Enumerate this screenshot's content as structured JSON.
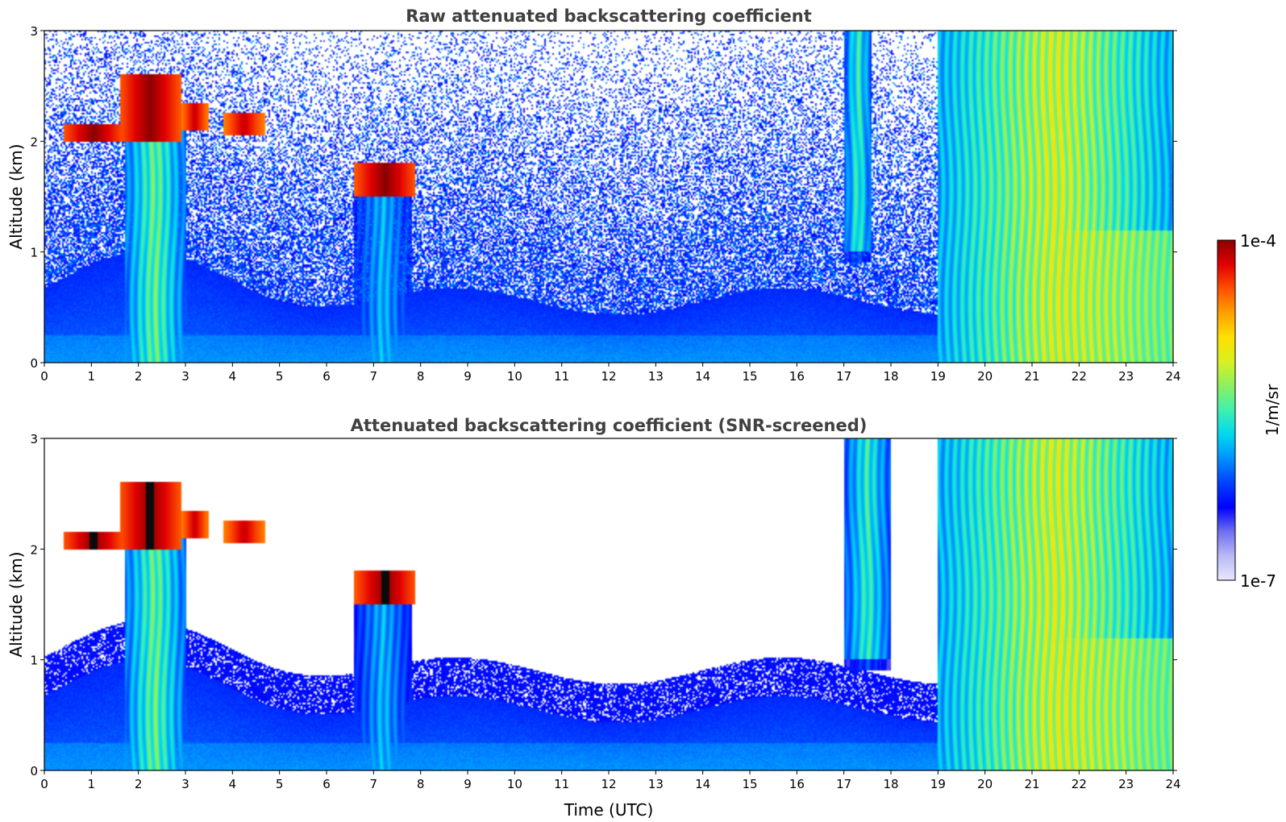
{
  "chart_data": [
    {
      "type": "heatmap",
      "title": "Raw attenuated backscattering coefficient",
      "xlabel": "",
      "ylabel": "Altitude (km)",
      "xlim": [
        0,
        24
      ],
      "ylim": [
        0,
        3
      ],
      "xticks": [
        0,
        1,
        2,
        3,
        4,
        5,
        6,
        7,
        8,
        9,
        10,
        11,
        12,
        13,
        14,
        15,
        16,
        17,
        18,
        19,
        20,
        21,
        22,
        23,
        24
      ],
      "yticks": [
        0,
        1,
        2,
        3
      ],
      "screened": false,
      "features": [
        {
          "name": "boundary-layer aerosol",
          "x": [
            0,
            24
          ],
          "y": [
            0,
            0.6
          ],
          "level": 0.28
        },
        {
          "name": "noise region",
          "x": [
            0,
            24
          ],
          "y": [
            0.6,
            3
          ],
          "level": 0.22
        },
        {
          "name": "cloud layer",
          "x": [
            0.4,
            1.7
          ],
          "y": [
            2.0,
            2.15
          ],
          "level": 1.0
        },
        {
          "name": "cloud layer",
          "x": [
            1.6,
            2.9
          ],
          "y": [
            2.0,
            2.6
          ],
          "level": 1.0
        },
        {
          "name": "cloud layer",
          "x": [
            2.9,
            3.5
          ],
          "y": [
            2.1,
            2.35
          ],
          "level": 0.95
        },
        {
          "name": "cloud layer",
          "x": [
            3.8,
            4.7
          ],
          "y": [
            2.05,
            2.25
          ],
          "level": 0.95
        },
        {
          "name": "cloud layer",
          "x": [
            6.6,
            7.9
          ],
          "y": [
            1.5,
            1.8
          ],
          "level": 1.0
        },
        {
          "name": "precipitation fall streak",
          "x": [
            1.7,
            3.0
          ],
          "y": [
            0,
            2.3
          ],
          "level": 0.6
        },
        {
          "name": "precipitation fall streak",
          "x": [
            6.6,
            7.8
          ],
          "y": [
            0,
            1.6
          ],
          "level": 0.45
        },
        {
          "name": "high cloud",
          "x": [
            17.0,
            17.6
          ],
          "y": [
            0.9,
            3.0
          ],
          "level": 0.55
        },
        {
          "name": "precipitation",
          "x": [
            19.0,
            24.0
          ],
          "y": [
            0,
            3.0
          ],
          "level": 0.72
        }
      ]
    },
    {
      "type": "heatmap",
      "title": "Attenuated backscattering coefficient (SNR-screened)",
      "xlabel": "Time (UTC)",
      "ylabel": "Altitude (km)",
      "xlim": [
        0,
        24
      ],
      "ylim": [
        0,
        3
      ],
      "xticks": [
        0,
        1,
        2,
        3,
        4,
        5,
        6,
        7,
        8,
        9,
        10,
        11,
        12,
        13,
        14,
        15,
        16,
        17,
        18,
        19,
        20,
        21,
        22,
        23,
        24
      ],
      "yticks": [
        0,
        1,
        2,
        3
      ],
      "screened": true,
      "features": [
        {
          "name": "boundary-layer aerosol",
          "x": [
            0,
            24
          ],
          "y": [
            0,
            1.0
          ],
          "level": 0.27
        },
        {
          "name": "cloud layer",
          "x": [
            0.4,
            1.7
          ],
          "y": [
            2.0,
            2.15
          ],
          "level": 1.0
        },
        {
          "name": "cloud layer",
          "x": [
            1.6,
            2.9
          ],
          "y": [
            2.0,
            2.6
          ],
          "level": 1.0
        },
        {
          "name": "cloud layer",
          "x": [
            2.9,
            3.5
          ],
          "y": [
            2.1,
            2.35
          ],
          "level": 0.95
        },
        {
          "name": "cloud layer",
          "x": [
            3.8,
            4.7
          ],
          "y": [
            2.05,
            2.25
          ],
          "level": 0.95
        },
        {
          "name": "cloud layer",
          "x": [
            6.6,
            7.9
          ],
          "y": [
            1.5,
            1.8
          ],
          "level": 1.0
        },
        {
          "name": "precipitation fall streak",
          "x": [
            1.7,
            3.0
          ],
          "y": [
            0,
            2.3
          ],
          "level": 0.6
        },
        {
          "name": "precipitation fall streak",
          "x": [
            6.6,
            7.8
          ],
          "y": [
            0,
            1.6
          ],
          "level": 0.45
        },
        {
          "name": "high cloud",
          "x": [
            17.0,
            18.0
          ],
          "y": [
            0.9,
            3.0
          ],
          "level": 0.55
        },
        {
          "name": "precipitation",
          "x": [
            19.0,
            24.0
          ],
          "y": [
            0,
            3.0
          ],
          "level": 0.72
        }
      ]
    }
  ],
  "colorbar": {
    "label": "1/m/sr",
    "max_label": "1e-4",
    "min_label": "1e-7",
    "range": [
      1e-07,
      0.0001
    ],
    "scale": "log",
    "colormap_stops": [
      "#e8e8ff",
      "#b9b9f5",
      "#6f6ff0",
      "#0000ff",
      "#0040ff",
      "#0090ff",
      "#00d8f0",
      "#3ff0b0",
      "#8cf060",
      "#d8f020",
      "#ffe000",
      "#ffa000",
      "#ff5000",
      "#e00000",
      "#8b0000"
    ]
  }
}
